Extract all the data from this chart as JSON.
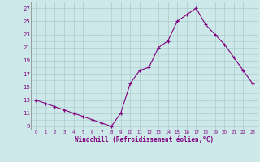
{
  "x": [
    0,
    1,
    2,
    3,
    4,
    5,
    6,
    7,
    8,
    9,
    10,
    11,
    12,
    13,
    14,
    15,
    16,
    17,
    18,
    19,
    20,
    21,
    22,
    23
  ],
  "y": [
    13,
    12.5,
    12,
    11.5,
    11,
    10.5,
    10,
    9.5,
    9,
    11,
    15.5,
    17.5,
    18,
    21,
    22,
    25,
    26,
    27,
    24.5,
    23,
    21.5,
    19.5,
    17.5,
    15.5
  ],
  "line_color": "#800080",
  "marker": "+",
  "marker_color": "#800080",
  "bg_color": "#cce8e8",
  "grid_color": "#aacccc",
  "xlabel": "Windchill (Refroidissement éolien,°C)",
  "xlabel_color": "#800080",
  "ylabel_ticks": [
    9,
    11,
    13,
    15,
    17,
    19,
    21,
    23,
    25,
    27
  ],
  "xtick_labels": [
    "0",
    "1",
    "2",
    "3",
    "4",
    "5",
    "6",
    "7",
    "8",
    "9",
    "10",
    "11",
    "12",
    "13",
    "14",
    "15",
    "16",
    "17",
    "18",
    "19",
    "20",
    "21",
    "22",
    "23"
  ],
  "ylim": [
    8.5,
    28.0
  ],
  "xlim": [
    -0.5,
    23.5
  ],
  "tick_color": "#800080",
  "axis_color": "#808080",
  "font_color": "#800080"
}
